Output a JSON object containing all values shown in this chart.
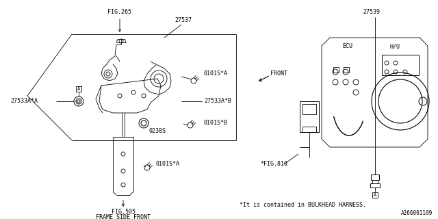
{
  "bg_color": "#ffffff",
  "line_color": "#000000",
  "labels": {
    "fig265": "FIG.265",
    "fig505": "FIG.505",
    "fig505_sub": "FRAME SIDE FRONT",
    "fig810": "*FIG.810",
    "fig_note": "*It is contained in BULKHEAD HARNESS.",
    "part27537": "27537",
    "part27539": "27539",
    "part27533a_a": "27533A*A",
    "part27533a_b": "27533A*B",
    "part0101s_a1": "0101S*A",
    "part0101s_a2": "0101S*A",
    "part0101s_b": "0101S*B",
    "part0238s": "0238S",
    "ecu": "ECU",
    "hu": "H/U",
    "front": "FRONT"
  },
  "part_number_fig": "A266001109"
}
